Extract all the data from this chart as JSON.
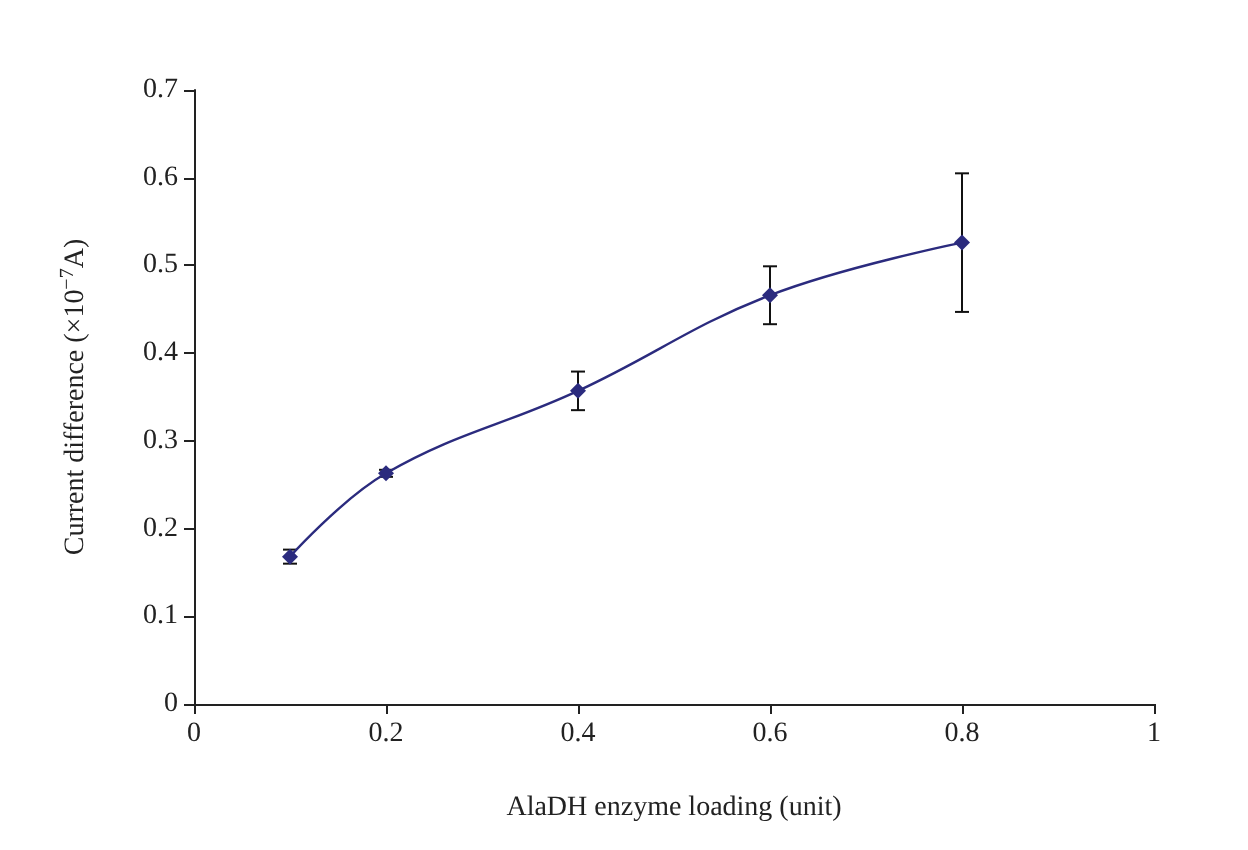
{
  "chart_data": {
    "type": "line",
    "xlabel": "AlaDH enzyme loading (unit)",
    "ylabel": "Current difference (×10$^{−7}$A)",
    "x": [
      0.1,
      0.2,
      0.4,
      0.6,
      0.8
    ],
    "series": [
      {
        "color": "#2b2b7e",
        "values": [
          0.168,
          0.263,
          0.357,
          0.466,
          0.526
        ],
        "errors": [
          0.008,
          0.004,
          0.022,
          0.033,
          0.079
        ]
      }
    ],
    "xlim": [
      0,
      1
    ],
    "xticks": [
      0,
      0.2,
      0.4,
      0.6,
      0.8,
      1
    ],
    "ylim": [
      0,
      0.7
    ],
    "yticks": [
      0,
      0.1,
      0.2,
      0.3,
      0.4,
      0.5,
      0.6,
      0.7
    ],
    "grid": false,
    "marker": "diamond",
    "line_style": "solid"
  }
}
